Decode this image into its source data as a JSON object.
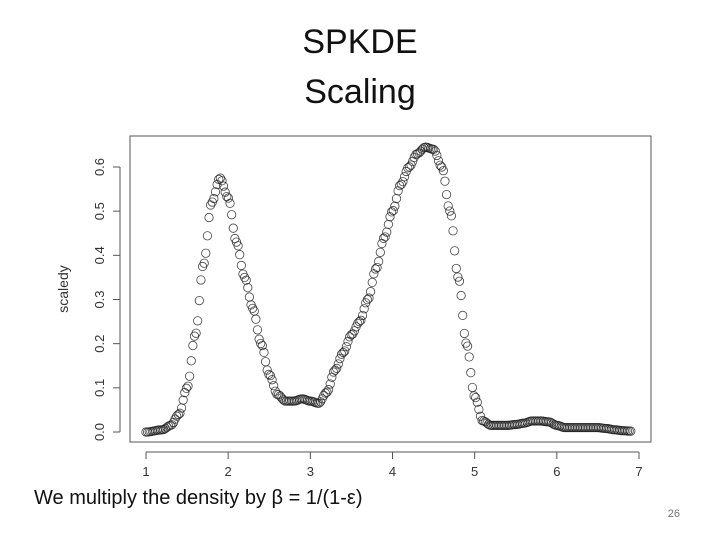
{
  "slide": {
    "title_line1": "SPKDE",
    "title_line2": "Scaling",
    "caption": "We multiply the density by β = 1/(1-ε)",
    "page_number": "26"
  },
  "chart_data": {
    "type": "scatter",
    "title": "",
    "xlabel": "",
    "ylabel": "scaledy",
    "xlim": [
      1,
      7
    ],
    "ylim": [
      0,
      0.65
    ],
    "x_ticks": [
      1,
      2,
      3,
      4,
      5,
      6,
      7
    ],
    "y_ticks": [
      0.0,
      0.1,
      0.2,
      0.3,
      0.4,
      0.5,
      0.6
    ],
    "x_tick_labels": [
      "1",
      "2",
      "3",
      "4",
      "5",
      "6",
      "7"
    ],
    "y_tick_labels": [
      "0.0",
      "0.1",
      "0.2",
      "0.3",
      "0.4",
      "0.5",
      "0.6"
    ],
    "marker": "open-circle",
    "series": [
      {
        "x": [
          1.0,
          1.2,
          1.3,
          1.4,
          1.5,
          1.6,
          1.7,
          1.8,
          1.9,
          2.0,
          2.1,
          2.2,
          2.3,
          2.4,
          2.5,
          2.6,
          2.7,
          2.8,
          2.9,
          3.0,
          3.1,
          3.2,
          3.3,
          3.4,
          3.5,
          3.6,
          3.7,
          3.8,
          3.9,
          4.0,
          4.1,
          4.2,
          4.3,
          4.4,
          4.5,
          4.6,
          4.7,
          4.8,
          4.9,
          5.0,
          5.1,
          5.2,
          5.3,
          5.4,
          5.5,
          5.6,
          5.7,
          5.8,
          5.9,
          6.0,
          6.1,
          6.2,
          6.3,
          6.4,
          6.5,
          6.6,
          6.7,
          6.8,
          6.9
        ],
        "y": [
          0.0,
          0.005,
          0.015,
          0.04,
          0.1,
          0.22,
          0.38,
          0.52,
          0.575,
          0.53,
          0.43,
          0.35,
          0.28,
          0.2,
          0.13,
          0.085,
          0.07,
          0.07,
          0.075,
          0.07,
          0.065,
          0.09,
          0.14,
          0.18,
          0.22,
          0.25,
          0.3,
          0.37,
          0.44,
          0.5,
          0.56,
          0.6,
          0.63,
          0.645,
          0.64,
          0.6,
          0.5,
          0.35,
          0.2,
          0.08,
          0.025,
          0.015,
          0.015,
          0.015,
          0.017,
          0.02,
          0.025,
          0.025,
          0.023,
          0.015,
          0.01,
          0.01,
          0.01,
          0.01,
          0.01,
          0.008,
          0.005,
          0.003,
          0.002
        ]
      }
    ]
  }
}
